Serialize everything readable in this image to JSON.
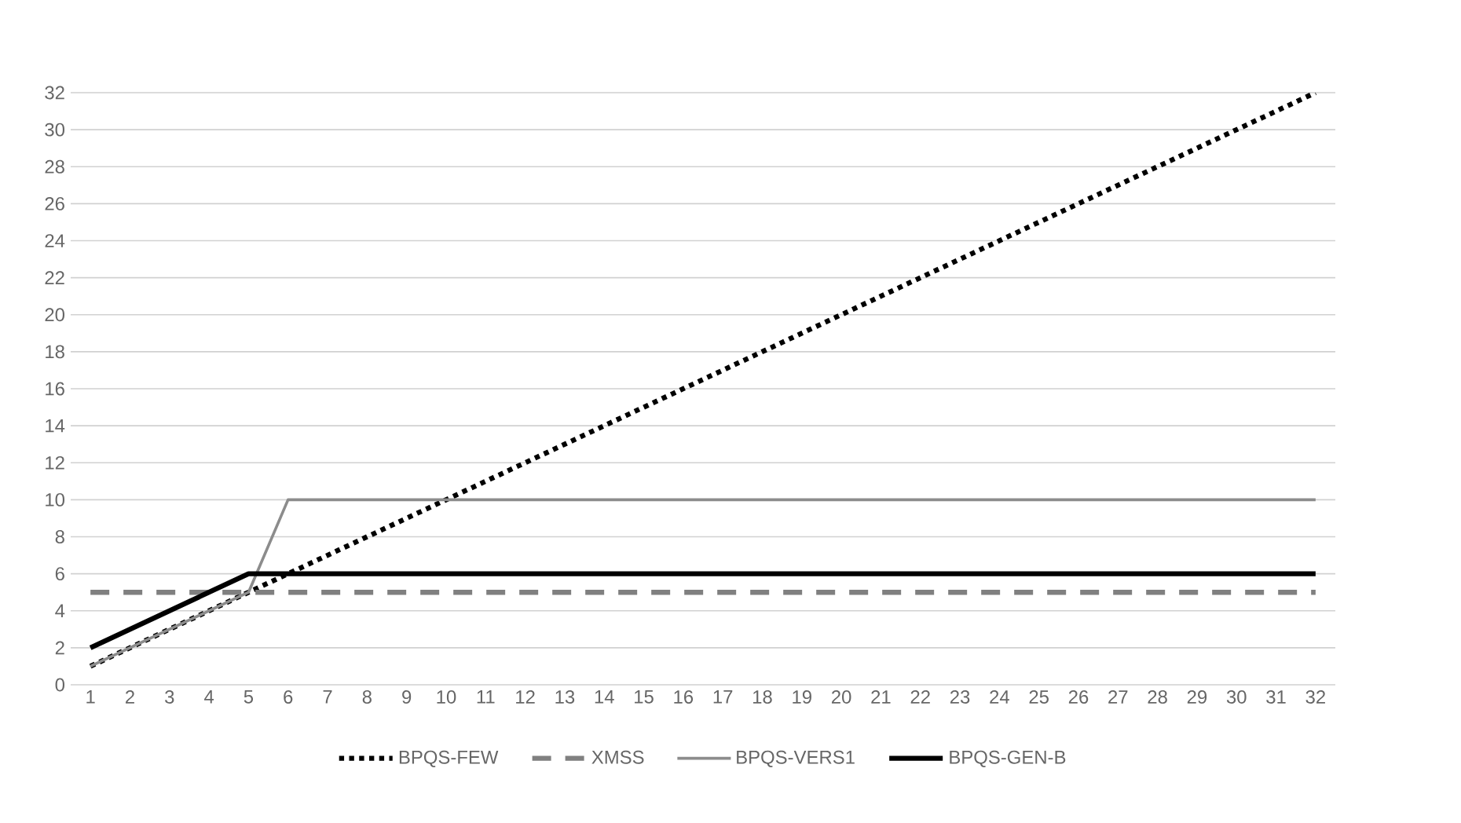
{
  "chart_data": {
    "type": "line",
    "categories": [
      "1",
      "2",
      "3",
      "4",
      "5",
      "6",
      "7",
      "8",
      "9",
      "10",
      "11",
      "12",
      "13",
      "14",
      "15",
      "16",
      "17",
      "18",
      "19",
      "20",
      "21",
      "22",
      "23",
      "24",
      "25",
      "26",
      "27",
      "28",
      "29",
      "30",
      "31",
      "32"
    ],
    "series": [
      {
        "name": "BPQS-FEW",
        "color": "#000000",
        "line_style": "dotted",
        "values": [
          1,
          2,
          3,
          4,
          5,
          6,
          7,
          8,
          9,
          10,
          11,
          12,
          13,
          14,
          15,
          16,
          17,
          18,
          19,
          20,
          21,
          22,
          23,
          24,
          25,
          26,
          27,
          28,
          29,
          30,
          31,
          32
        ]
      },
      {
        "name": "XMSS",
        "color": "#808080",
        "line_style": "dashed",
        "values": [
          5,
          5,
          5,
          5,
          5,
          5,
          5,
          5,
          5,
          5,
          5,
          5,
          5,
          5,
          5,
          5,
          5,
          5,
          5,
          5,
          5,
          5,
          5,
          5,
          5,
          5,
          5,
          5,
          5,
          5,
          5,
          5
        ]
      },
      {
        "name": "BPQS-VERS1",
        "color": "#8c8c8c",
        "line_style": "solid",
        "values": [
          1,
          2,
          3,
          4,
          5,
          10,
          10,
          10,
          10,
          10,
          10,
          10,
          10,
          10,
          10,
          10,
          10,
          10,
          10,
          10,
          10,
          10,
          10,
          10,
          10,
          10,
          10,
          10,
          10,
          10,
          10,
          10
        ]
      },
      {
        "name": "BPQS-GEN-B",
        "color": "#000000",
        "line_style": "solid",
        "values": [
          2,
          3,
          4,
          5,
          6,
          6,
          6,
          6,
          6,
          6,
          6,
          6,
          6,
          6,
          6,
          6,
          6,
          6,
          6,
          6,
          6,
          6,
          6,
          6,
          6,
          6,
          6,
          6,
          6,
          6,
          6,
          6
        ]
      }
    ],
    "ylim": [
      0,
      32
    ],
    "yticks": [
      0,
      2,
      4,
      6,
      8,
      10,
      12,
      14,
      16,
      18,
      20,
      22,
      24,
      26,
      28,
      30,
      32
    ],
    "grid": "y",
    "legend": "bottom",
    "marker": "none"
  }
}
